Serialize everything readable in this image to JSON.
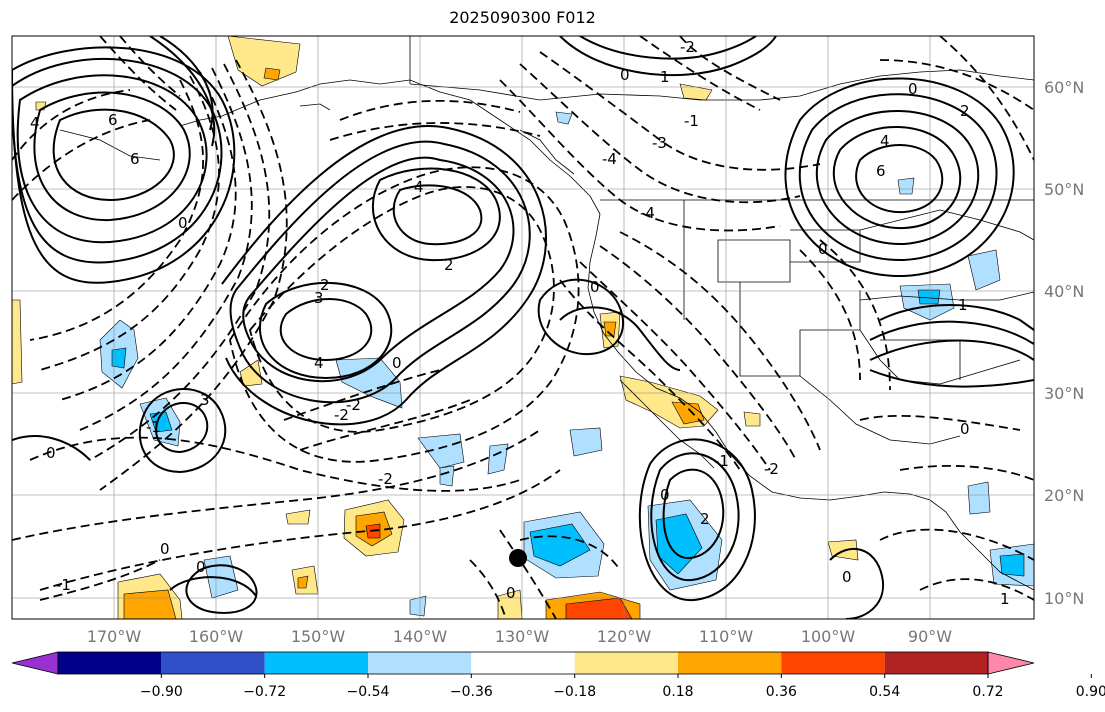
{
  "title": "2025090300 F012",
  "latitude_labels": [
    "60°N",
    "50°N",
    "40°N",
    "30°N",
    "20°N",
    "10°N"
  ],
  "longitude_labels": [
    "170°W",
    "160°W",
    "150°W",
    "140°W",
    "130°W",
    "120°W",
    "110°W",
    "100°W",
    "90°W"
  ],
  "colorbar": {
    "ticks": [
      "−0.90",
      "−0.72",
      "−0.54",
      "−0.36",
      "−0.18",
      "0.18",
      "0.36",
      "0.54",
      "0.72",
      "0.90"
    ],
    "colors": [
      "#9b30d0",
      "#00008b",
      "#3050c8",
      "#00bfff",
      "#b0e0ff",
      "#ffffff",
      "#ffe88a",
      "#ffa500",
      "#ff4500",
      "#b22222",
      "#ff88aa"
    ]
  },
  "contour_labels": [
    {
      "text": "6"
    },
    {
      "text": "4"
    },
    {
      "text": "6"
    },
    {
      "text": "4"
    },
    {
      "text": "2"
    },
    {
      "text": "3"
    },
    {
      "text": "4"
    },
    {
      "text": "2"
    },
    {
      "text": "0"
    },
    {
      "text": "-2"
    },
    {
      "text": "-2"
    },
    {
      "text": "0"
    },
    {
      "text": "-4"
    },
    {
      "text": "-3"
    },
    {
      "text": "-4"
    },
    {
      "text": "-1"
    },
    {
      "text": "0"
    },
    {
      "text": "1"
    },
    {
      "text": "-2"
    },
    {
      "text": "4"
    },
    {
      "text": "6"
    },
    {
      "text": "2"
    },
    {
      "text": "0"
    },
    {
      "text": "1"
    },
    {
      "text": "-2"
    },
    {
      "text": "0"
    },
    {
      "text": "0"
    },
    {
      "text": "2"
    },
    {
      "text": "0"
    },
    {
      "text": "-1"
    },
    {
      "text": "3"
    },
    {
      "text": "0"
    },
    {
      "text": "-1"
    },
    {
      "text": "-2"
    },
    {
      "text": "0"
    },
    {
      "text": "0"
    },
    {
      "text": "0"
    },
    {
      "text": "-1"
    },
    {
      "text": "0"
    },
    {
      "text": "1"
    },
    {
      "text": "0"
    }
  ],
  "marker": {
    "name": "black-dot"
  }
}
